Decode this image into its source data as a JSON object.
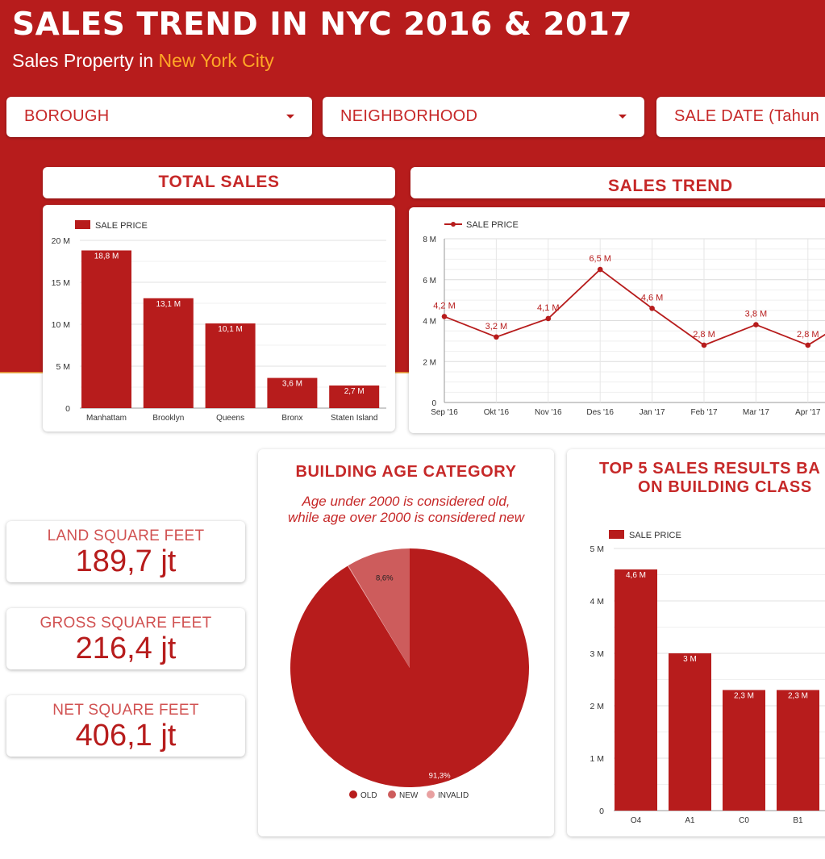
{
  "header": {
    "title": "SALES TREND IN NYC 2016 & 2017",
    "subtitle_prefix": "Sales Property in ",
    "subtitle_highlight": "New York City"
  },
  "filters": [
    {
      "label": "BOROUGH"
    },
    {
      "label": "NEIGHBORHOOD"
    },
    {
      "label": "SALE DATE (Tahun"
    }
  ],
  "kpis": [
    {
      "label": "LAND SQUARE FEET",
      "value": "189,7 jt"
    },
    {
      "label": "GROSS SQUARE FEET",
      "value": "216,4 jt"
    },
    {
      "label": "NET SQUARE FEET",
      "value": "406,1 jt"
    }
  ],
  "panels": {
    "total_sales": "TOTAL SALES",
    "sales_trend": "SALES TREND",
    "building_age": "BUILDING AGE CATEGORY",
    "building_age_note_1": "Age under 2000 is considered old,",
    "building_age_note_2": "while age over 2000 is considered new",
    "top5_line1": "TOP 5 SALES RESULTS BA",
    "top5_line2": "ON BUILDING CLASS"
  },
  "colors": {
    "primary": "#b71c1c",
    "new": "#cd5c5c",
    "invalid": "#e8a0a0",
    "accent": "#ffa726"
  },
  "chart_data": [
    {
      "id": "total_sales",
      "type": "bar",
      "legend": "SALE PRICE",
      "categories": [
        "Manhattam",
        "Brooklyn",
        "Queens",
        "Bronx",
        "Staten Island"
      ],
      "values": [
        18.8,
        13.1,
        10.1,
        3.6,
        2.7
      ],
      "labels": [
        "18,8 M",
        "13,1 M",
        "10,1 M",
        "3,6 M",
        "2,7 M"
      ],
      "ylim": [
        0,
        20
      ],
      "yticks": [
        0,
        5,
        10,
        15,
        20
      ],
      "ytick_labels": [
        "0",
        "5 M",
        "10 M",
        "15 M",
        "20 M"
      ]
    },
    {
      "id": "sales_trend",
      "type": "line",
      "legend": "SALE PRICE",
      "x": [
        "Sep '16",
        "Okt '16",
        "Nov '16",
        "Des '16",
        "Jan '17",
        "Feb '17",
        "Mar '17",
        "Apr '17"
      ],
      "values": [
        4.2,
        3.2,
        4.1,
        6.5,
        4.6,
        2.8,
        3.8,
        2.8
      ],
      "labels": [
        "4,2 M",
        "3,2 M",
        "4,1 M",
        "6,5 M",
        "4,6 M",
        "2,8 M",
        "3,8 M",
        "2,8 M"
      ],
      "ylim": [
        0,
        8
      ],
      "yticks": [
        0,
        2,
        4,
        6,
        8
      ],
      "ytick_labels": [
        "0",
        "2 M",
        "4 M",
        "6 M",
        "8 M"
      ]
    },
    {
      "id": "building_age",
      "type": "pie",
      "slices": [
        {
          "name": "OLD",
          "value": 91.3,
          "label": "91,3%",
          "color": "#b71c1c"
        },
        {
          "name": "NEW",
          "value": 8.6,
          "label": "8,6%",
          "color": "#cd5c5c"
        },
        {
          "name": "INVALID",
          "value": 0.1,
          "label": "",
          "color": "#e8a0a0"
        }
      ]
    },
    {
      "id": "top5_building_class",
      "type": "bar",
      "legend": "SALE PRICE",
      "categories": [
        "O4",
        "A1",
        "C0",
        "B1"
      ],
      "values": [
        4.6,
        3.0,
        2.3,
        2.3
      ],
      "labels": [
        "4,6 M",
        "3 M",
        "2,3 M",
        "2,3 M"
      ],
      "ylim": [
        0,
        5
      ],
      "yticks": [
        0,
        1,
        2,
        3,
        4,
        5
      ],
      "ytick_labels": [
        "0",
        "1 M",
        "2 M",
        "3 M",
        "4 M",
        "5 M"
      ]
    }
  ]
}
